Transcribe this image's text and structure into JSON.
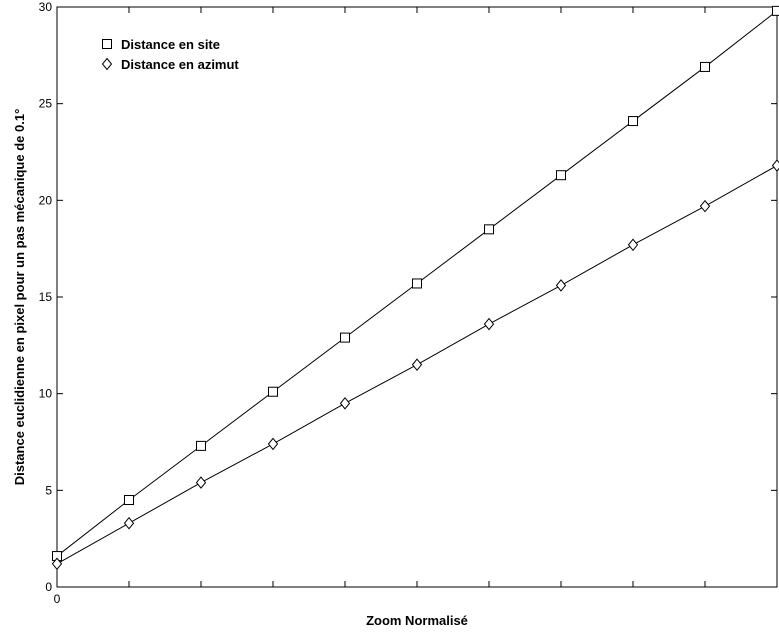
{
  "chart_data": {
    "type": "line",
    "xlabel": "Zoom Normalisé",
    "ylabel": "Distance euclidienne en pixel pour un pas mécanique de 0.1°",
    "xlim": [
      0,
      1
    ],
    "ylim": [
      0,
      30
    ],
    "x_ticks": [
      0,
      0.1,
      0.2,
      0.3,
      0.4,
      0.5,
      0.6,
      0.7,
      0.8,
      0.9,
      1.0
    ],
    "x_tick_labels": [
      "0",
      "",
      "",
      "",
      "",
      "",
      "",
      "",
      "",
      "",
      ""
    ],
    "y_ticks": [
      0,
      5,
      10,
      15,
      20,
      25,
      30
    ],
    "y_tick_labels": [
      "0",
      "5",
      "10",
      "15",
      "20",
      "25",
      "30"
    ],
    "grid": false,
    "legend_position": "top-left",
    "x": [
      0,
      0.1,
      0.2,
      0.3,
      0.4,
      0.5,
      0.6,
      0.7,
      0.8,
      0.9,
      1.0
    ],
    "series": [
      {
        "name": "Distance en site",
        "marker": "square",
        "values": [
          1.6,
          4.5,
          7.3,
          10.1,
          12.9,
          15.7,
          18.5,
          21.3,
          24.1,
          26.9,
          29.8
        ]
      },
      {
        "name": "Distance en azimut",
        "marker": "diamond",
        "values": [
          1.2,
          3.3,
          5.4,
          7.4,
          9.5,
          11.5,
          13.6,
          15.6,
          17.7,
          19.7,
          21.8
        ]
      }
    ]
  }
}
